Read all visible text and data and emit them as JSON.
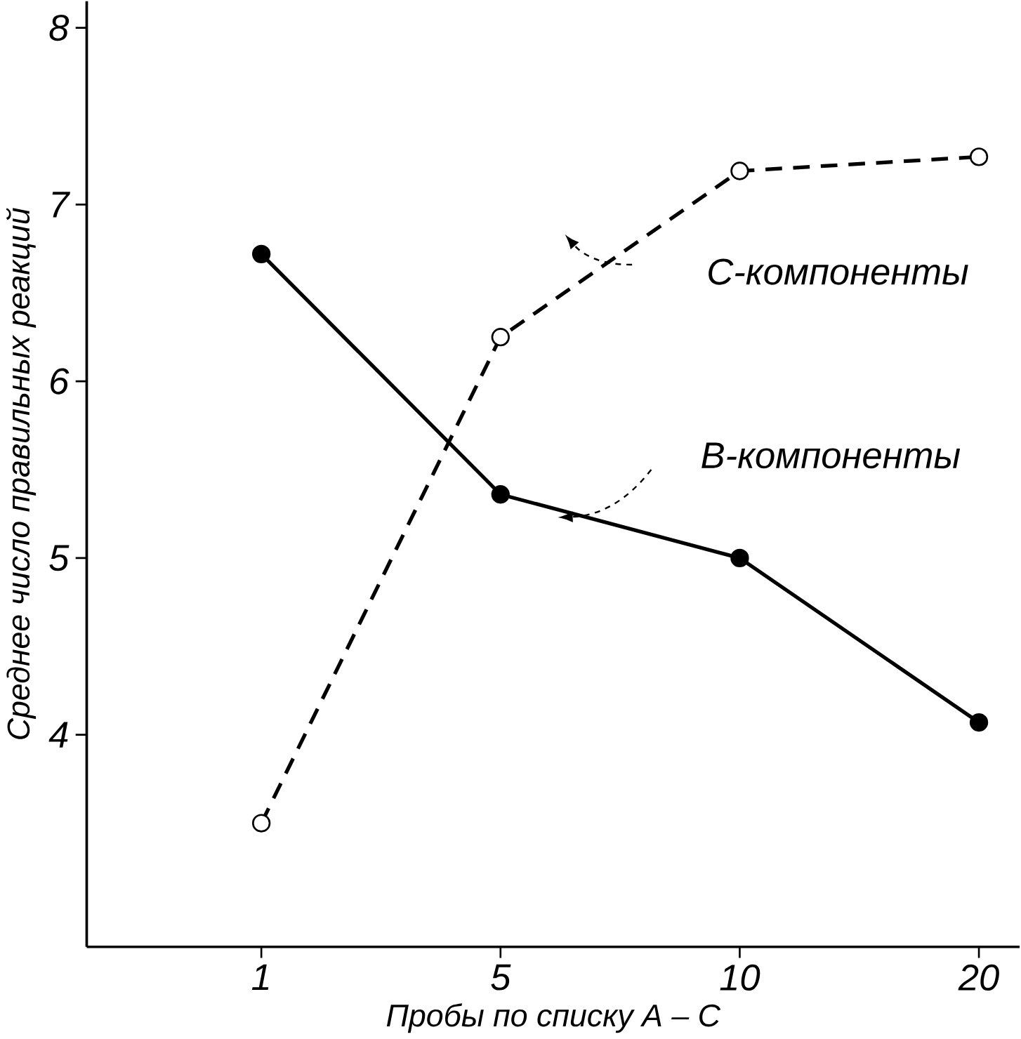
{
  "chart_data": {
    "type": "line",
    "xlabel": "Пробы по списку  А – С",
    "ylabel": "Среднее число правильных реакций",
    "categories": [
      "1",
      "5",
      "10",
      "20"
    ],
    "series": [
      {
        "name": "С-компоненты",
        "color": "#000000",
        "values": [
          3.5,
          6.25,
          7.19,
          7.27
        ],
        "line_style": "dashed",
        "marker": "circle"
      },
      {
        "name": "В-компоненты",
        "color": "#000000",
        "values": [
          6.72,
          5.36,
          5.0,
          4.07
        ],
        "line_style": "solid",
        "marker": "circle"
      }
    ],
    "ylim": [
      2.8,
      8.15
    ],
    "yticks": [
      4,
      5,
      6,
      7,
      8
    ],
    "grid": false,
    "legend": "right"
  }
}
